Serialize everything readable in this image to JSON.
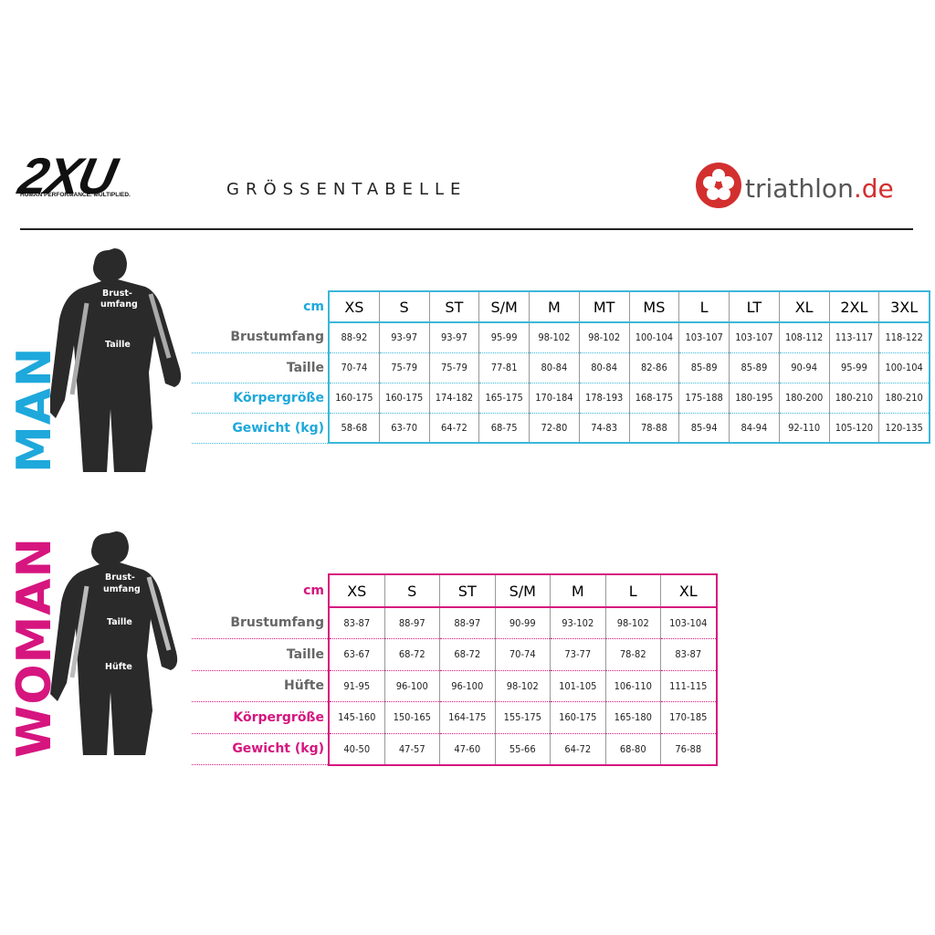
{
  "header": {
    "logo": "2XU",
    "tagline": "HUMAN PERFORMANCE. MULTIPLIED.",
    "title": "GRÖSSENTABELLE",
    "brand": "triathlon",
    "brand_tld": ".de"
  },
  "sections": [
    {
      "label": "MAN",
      "figure_labels": [
        "Brust-",
        "umfang",
        "Taille"
      ],
      "unit": "cm",
      "sizes": [
        "XS",
        "S",
        "ST",
        "S/M",
        "M",
        "MT",
        "MS",
        "L",
        "LT",
        "XL",
        "2XL",
        "3XL"
      ],
      "rows": [
        {
          "name": "Brustumfang",
          "values": [
            "88-92",
            "93-97",
            "93-97",
            "95-99",
            "98-102",
            "98-102",
            "100-104",
            "103-107",
            "103-107",
            "108-112",
            "113-117",
            "118-122"
          ]
        },
        {
          "name": "Taille",
          "values": [
            "70-74",
            "75-79",
            "75-79",
            "77-81",
            "80-84",
            "80-84",
            "82-86",
            "85-89",
            "85-89",
            "90-94",
            "95-99",
            "100-104"
          ]
        },
        {
          "name": "Körpergröße",
          "values": [
            "160-175",
            "160-175",
            "174-182",
            "165-175",
            "170-184",
            "178-193",
            "168-175",
            "175-188",
            "180-195",
            "180-200",
            "180-210",
            "180-210"
          ]
        },
        {
          "name": "Gewicht (kg)",
          "values": [
            "58-68",
            "63-70",
            "64-72",
            "68-75",
            "72-80",
            "74-83",
            "78-88",
            "85-94",
            "84-94",
            "92-110",
            "105-120",
            "120-135"
          ]
        }
      ]
    },
    {
      "label": "WOMAN",
      "figure_labels": [
        "Brust-",
        "umfang",
        "Taille",
        "Hüfte"
      ],
      "unit": "cm",
      "sizes": [
        "XS",
        "S",
        "ST",
        "S/M",
        "M",
        "L",
        "XL"
      ],
      "rows": [
        {
          "name": "Brustumfang",
          "values": [
            "83-87",
            "88-97",
            "88-97",
            "90-99",
            "93-102",
            "98-102",
            "103-104"
          ]
        },
        {
          "name": "Taille",
          "values": [
            "63-67",
            "68-72",
            "68-72",
            "70-74",
            "73-77",
            "78-82",
            "83-87"
          ]
        },
        {
          "name": "Hüfte",
          "values": [
            "91-95",
            "96-100",
            "96-100",
            "98-102",
            "101-105",
            "106-110",
            "111-115"
          ]
        },
        {
          "name": "Körpergröße",
          "values": [
            "145-160",
            "150-165",
            "164-175",
            "155-175",
            "160-175",
            "165-180",
            "170-185"
          ]
        },
        {
          "name": "Gewicht (kg)",
          "values": [
            "40-50",
            "47-57",
            "47-60",
            "55-66",
            "64-72",
            "68-80",
            "76-88"
          ]
        }
      ]
    }
  ]
}
